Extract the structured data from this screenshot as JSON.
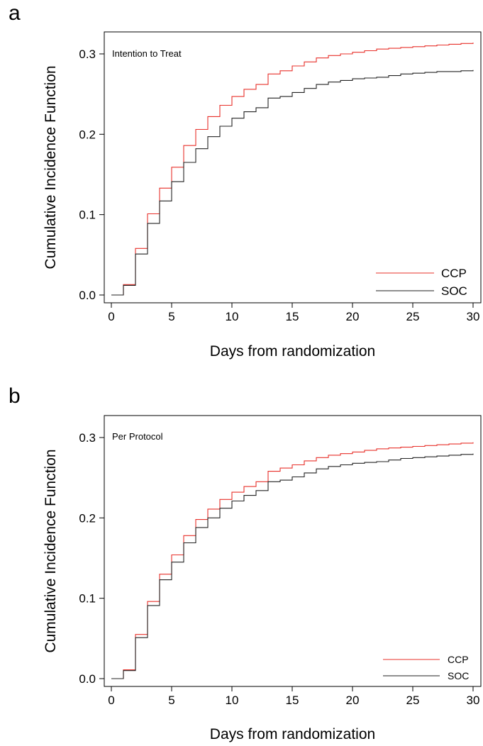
{
  "chart_data": [
    {
      "panel_label": "a",
      "type": "line",
      "step": true,
      "annotation": "Intention to Treat",
      "xlabel": "Days from randomization",
      "ylabel": "Cumulative Incidence Function",
      "xlim": [
        0,
        30
      ],
      "ylim": [
        0,
        0.3
      ],
      "xticks": [
        "0",
        "5",
        "10",
        "15",
        "20",
        "25",
        "30"
      ],
      "yticks": [
        "0.0",
        "0.1",
        "0.2",
        "0.3"
      ],
      "legend_position": "bottom-right",
      "grid": false,
      "series": [
        {
          "name": "CCP",
          "color": "#e8302a",
          "x": [
            0,
            1,
            2,
            3,
            4,
            5,
            6,
            7,
            8,
            9,
            10,
            11,
            12,
            13,
            14,
            15,
            16,
            17,
            18,
            19,
            20,
            21,
            22,
            23,
            24,
            25,
            26,
            27,
            28,
            29,
            30
          ],
          "y": [
            0,
            0.013,
            0.058,
            0.101,
            0.133,
            0.159,
            0.186,
            0.206,
            0.222,
            0.236,
            0.247,
            0.256,
            0.262,
            0.275,
            0.279,
            0.285,
            0.29,
            0.295,
            0.298,
            0.3,
            0.302,
            0.304,
            0.306,
            0.307,
            0.308,
            0.309,
            0.31,
            0.311,
            0.312,
            0.313,
            0.314
          ]
        },
        {
          "name": "SOC",
          "color": "#222222",
          "x": [
            0,
            1,
            2,
            3,
            4,
            5,
            6,
            7,
            8,
            9,
            10,
            11,
            12,
            13,
            14,
            15,
            16,
            17,
            18,
            19,
            20,
            21,
            22,
            23,
            24,
            25,
            26,
            27,
            28,
            29,
            30
          ],
          "y": [
            0,
            0.012,
            0.051,
            0.089,
            0.117,
            0.141,
            0.165,
            0.182,
            0.197,
            0.21,
            0.22,
            0.228,
            0.233,
            0.245,
            0.247,
            0.252,
            0.257,
            0.262,
            0.265,
            0.267,
            0.269,
            0.27,
            0.271,
            0.273,
            0.275,
            0.276,
            0.277,
            0.278,
            0.278,
            0.279,
            0.28
          ]
        }
      ]
    },
    {
      "panel_label": "b",
      "type": "line",
      "step": true,
      "annotation": "Per Protocol",
      "xlabel": "Days from randomization",
      "ylabel": "Cumulative Incidence Function",
      "xlim": [
        0,
        30
      ],
      "ylim": [
        0,
        0.3
      ],
      "xticks": [
        "0",
        "5",
        "10",
        "15",
        "20",
        "25",
        "30"
      ],
      "yticks": [
        "0.0",
        "0.1",
        "0.2",
        "0.3"
      ],
      "legend_position": "bottom-right",
      "grid": false,
      "series": [
        {
          "name": "CCP",
          "color": "#e8302a",
          "x": [
            0,
            1,
            2,
            3,
            4,
            5,
            6,
            7,
            8,
            9,
            10,
            11,
            12,
            13,
            14,
            15,
            16,
            17,
            18,
            19,
            20,
            21,
            22,
            23,
            24,
            25,
            26,
            27,
            28,
            29,
            30
          ],
          "y": [
            0,
            0.011,
            0.055,
            0.096,
            0.13,
            0.154,
            0.178,
            0.198,
            0.211,
            0.223,
            0.232,
            0.239,
            0.245,
            0.258,
            0.262,
            0.266,
            0.271,
            0.275,
            0.278,
            0.28,
            0.282,
            0.284,
            0.286,
            0.287,
            0.288,
            0.289,
            0.29,
            0.291,
            0.292,
            0.293,
            0.294
          ]
        },
        {
          "name": "SOC",
          "color": "#222222",
          "x": [
            0,
            1,
            2,
            3,
            4,
            5,
            6,
            7,
            8,
            9,
            10,
            11,
            12,
            13,
            14,
            15,
            16,
            17,
            18,
            19,
            20,
            21,
            22,
            23,
            24,
            25,
            26,
            27,
            28,
            29,
            30
          ],
          "y": [
            0,
            0.01,
            0.051,
            0.091,
            0.123,
            0.145,
            0.169,
            0.188,
            0.2,
            0.212,
            0.221,
            0.228,
            0.234,
            0.245,
            0.247,
            0.251,
            0.256,
            0.261,
            0.264,
            0.266,
            0.268,
            0.269,
            0.27,
            0.272,
            0.274,
            0.275,
            0.276,
            0.277,
            0.278,
            0.279,
            0.28
          ]
        }
      ]
    }
  ]
}
